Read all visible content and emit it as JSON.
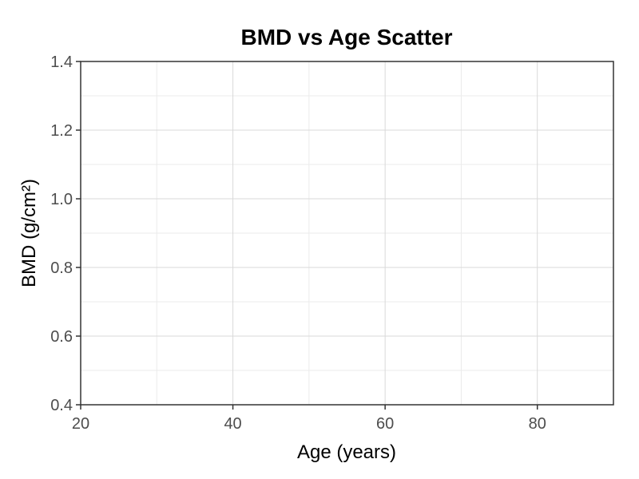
{
  "chart_data": {
    "type": "scatter",
    "title": "BMD vs Age Scatter",
    "xlabel": "Age (years)",
    "ylabel": "BMD (g/cm²)",
    "xlim": [
      20,
      90
    ],
    "ylim": [
      0.4,
      1.4
    ],
    "x_ticks": [
      20,
      40,
      60,
      80
    ],
    "x_tick_labels": [
      "20",
      "40",
      "60",
      "80"
    ],
    "x_minor_ticks": [
      30,
      50,
      70
    ],
    "y_ticks": [
      0.4,
      0.6,
      0.8,
      1.0,
      1.2,
      1.4
    ],
    "y_tick_labels": [
      "0.4",
      "0.6",
      "0.8",
      "1.0",
      "1.2",
      "1.4"
    ],
    "y_minor_ticks": [
      0.5,
      0.7,
      0.9,
      1.1,
      1.3
    ],
    "grid": true,
    "points": []
  }
}
